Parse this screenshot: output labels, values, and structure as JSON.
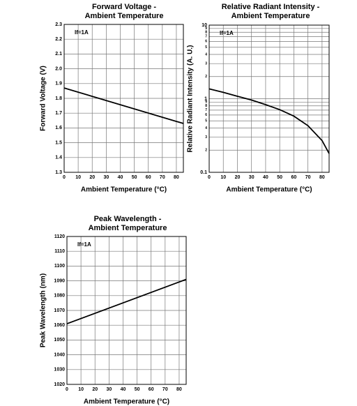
{
  "chart_data": [
    {
      "type": "line",
      "title": [
        "Forward Voltage -",
        "Ambient Temperature"
      ],
      "xlabel": "Ambient Temperature (°C)",
      "ylabel": "Forward Voltage (V)",
      "annotation": "If=1A",
      "xlim": [
        0,
        85
      ],
      "xticks": [
        0,
        10,
        20,
        30,
        40,
        50,
        60,
        70,
        80
      ],
      "ylim": [
        1.3,
        2.3
      ],
      "yticks": [
        1.3,
        1.4,
        1.5,
        1.6,
        1.7,
        1.8,
        1.9,
        {
          "value": 2,
          "label": "2.0"
        },
        2.1,
        2.2,
        2.3
      ],
      "grid": true,
      "log_y": false,
      "series": [
        {
          "color": "#000000",
          "x": [
            0,
            85
          ],
          "values": [
            1.87,
            1.63
          ]
        }
      ]
    },
    {
      "type": "line",
      "title": [
        "Relative Radiant Intensity -",
        "Ambient Temperature"
      ],
      "xlabel": "Ambient Temperature (°C)",
      "ylabel": "Relative Radiant Intensity (A. U.)",
      "annotation": "If=1A",
      "xlim": [
        0,
        85
      ],
      "xticks": [
        0,
        10,
        20,
        30,
        40,
        50,
        60,
        70,
        80
      ],
      "ylim": [
        0.1,
        10
      ],
      "yticks": [
        0.1,
        {
          "value": 0.2,
          "label": "2"
        },
        {
          "value": 0.3,
          "label": "3"
        },
        {
          "value": 0.4,
          "label": "4"
        },
        {
          "value": 0.5,
          "label": "5"
        },
        {
          "value": 0.6,
          "label": "6"
        },
        {
          "value": 0.7,
          "label": "7"
        },
        {
          "value": 0.8,
          "label": "8"
        },
        {
          "value": 0.9,
          "label": "9"
        },
        1,
        {
          "value": 2,
          "label": "2"
        },
        {
          "value": 3,
          "label": "3"
        },
        {
          "value": 4,
          "label": "4"
        },
        {
          "value": 5,
          "label": "5"
        },
        {
          "value": 6,
          "label": "6"
        },
        {
          "value": 7,
          "label": "7"
        },
        {
          "value": 8,
          "label": "8"
        },
        {
          "value": 9,
          "label": "9"
        },
        10
      ],
      "grid": true,
      "log_y": true,
      "series": [
        {
          "color": "#000000",
          "x": [
            0,
            10,
            20,
            30,
            40,
            50,
            60,
            70,
            80,
            85
          ],
          "values": [
            1.36,
            1.22,
            1.08,
            0.96,
            0.83,
            0.71,
            0.58,
            0.43,
            0.27,
            0.18
          ]
        }
      ]
    },
    {
      "type": "line",
      "title": [
        "Peak Wavelength -",
        "Ambient Temperature"
      ],
      "xlabel": "Ambient Temperature (°C)",
      "ylabel": "Peak Wavelength (nm)",
      "annotation": "If=1A",
      "xlim": [
        0,
        85
      ],
      "xticks": [
        0,
        10,
        20,
        30,
        40,
        50,
        60,
        70,
        80
      ],
      "ylim": [
        1020,
        1120
      ],
      "yticks": [
        1020,
        1030,
        1040,
        1050,
        1060,
        1070,
        1080,
        1090,
        1100,
        1110,
        1120
      ],
      "grid": true,
      "log_y": false,
      "series": [
        {
          "color": "#000000",
          "x": [
            0,
            85
          ],
          "values": [
            1061,
            1091
          ]
        }
      ]
    }
  ]
}
